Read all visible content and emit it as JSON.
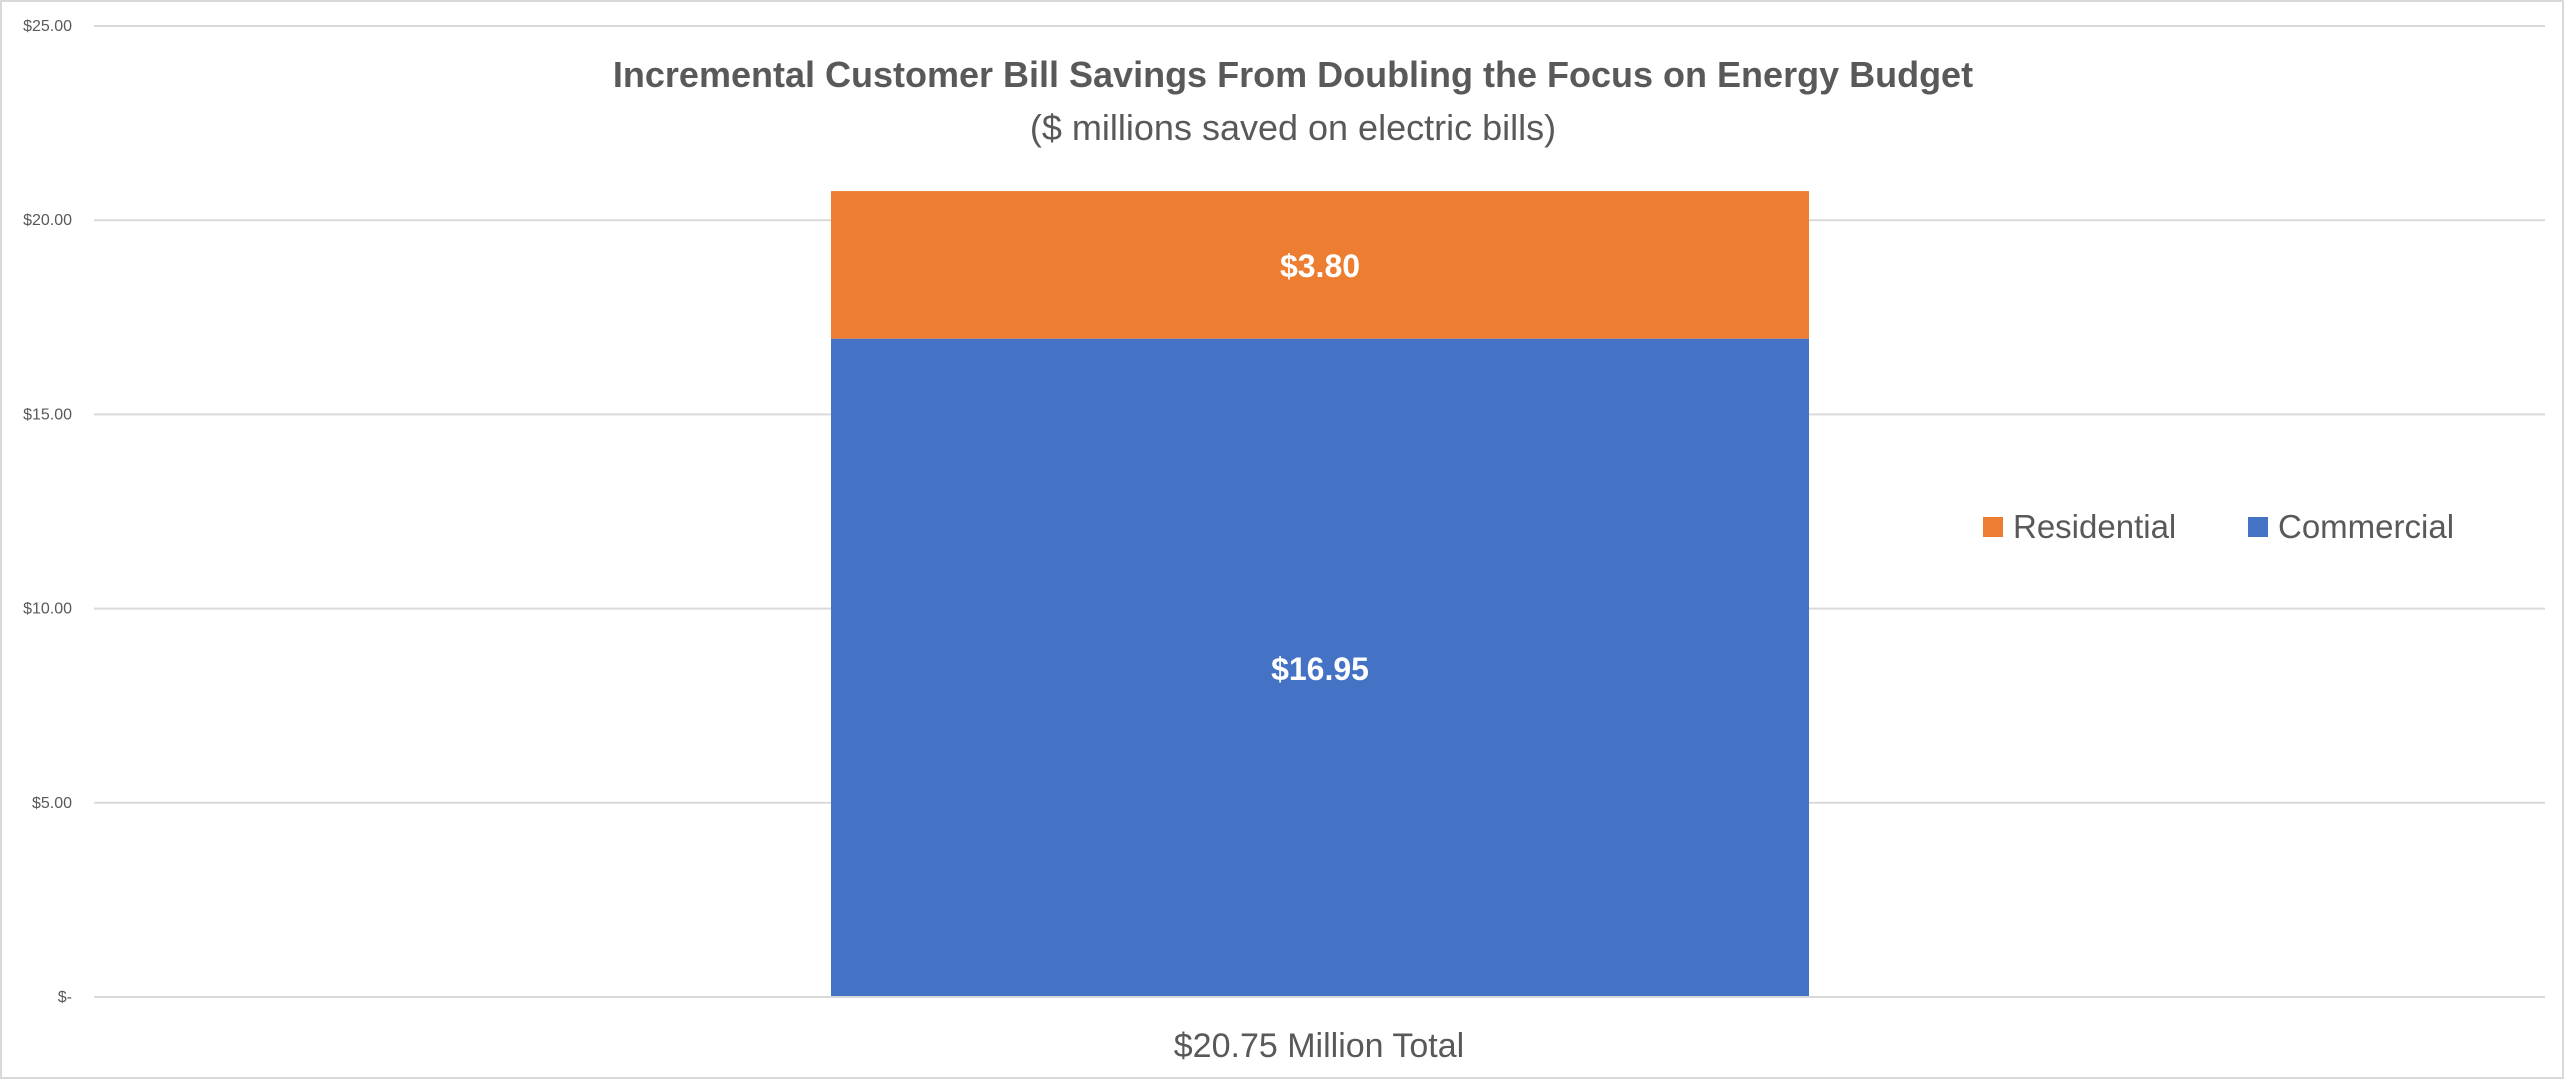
{
  "chart_data": {
    "type": "bar",
    "stacked": true,
    "title": "Incremental Customer Bill Savings From Doubling the Focus on Energy Budget",
    "subtitle": "($ millions saved on electric bills)",
    "categories": [
      "$20.75 Million Total"
    ],
    "series": [
      {
        "name": "Commercial",
        "values": [
          16.95
        ],
        "label": "$16.95",
        "color": "#4472c4"
      },
      {
        "name": "Residential",
        "values": [
          3.8
        ],
        "label": "$3.80",
        "color": "#ed7d31"
      }
    ],
    "ylim": [
      0,
      25
    ],
    "yticks": [
      0,
      5,
      10,
      15,
      20,
      25
    ],
    "ytick_labels": [
      "$-",
      "$5.00",
      "$10.00",
      "$15.00",
      "$20.00",
      "$25.00"
    ],
    "legend_order": [
      "Residential",
      "Commercial"
    ],
    "legend_position": "right",
    "grid": true,
    "gridline_color": "#d9d9d9",
    "text_color": "#595959",
    "xlabel": "",
    "ylabel": ""
  }
}
